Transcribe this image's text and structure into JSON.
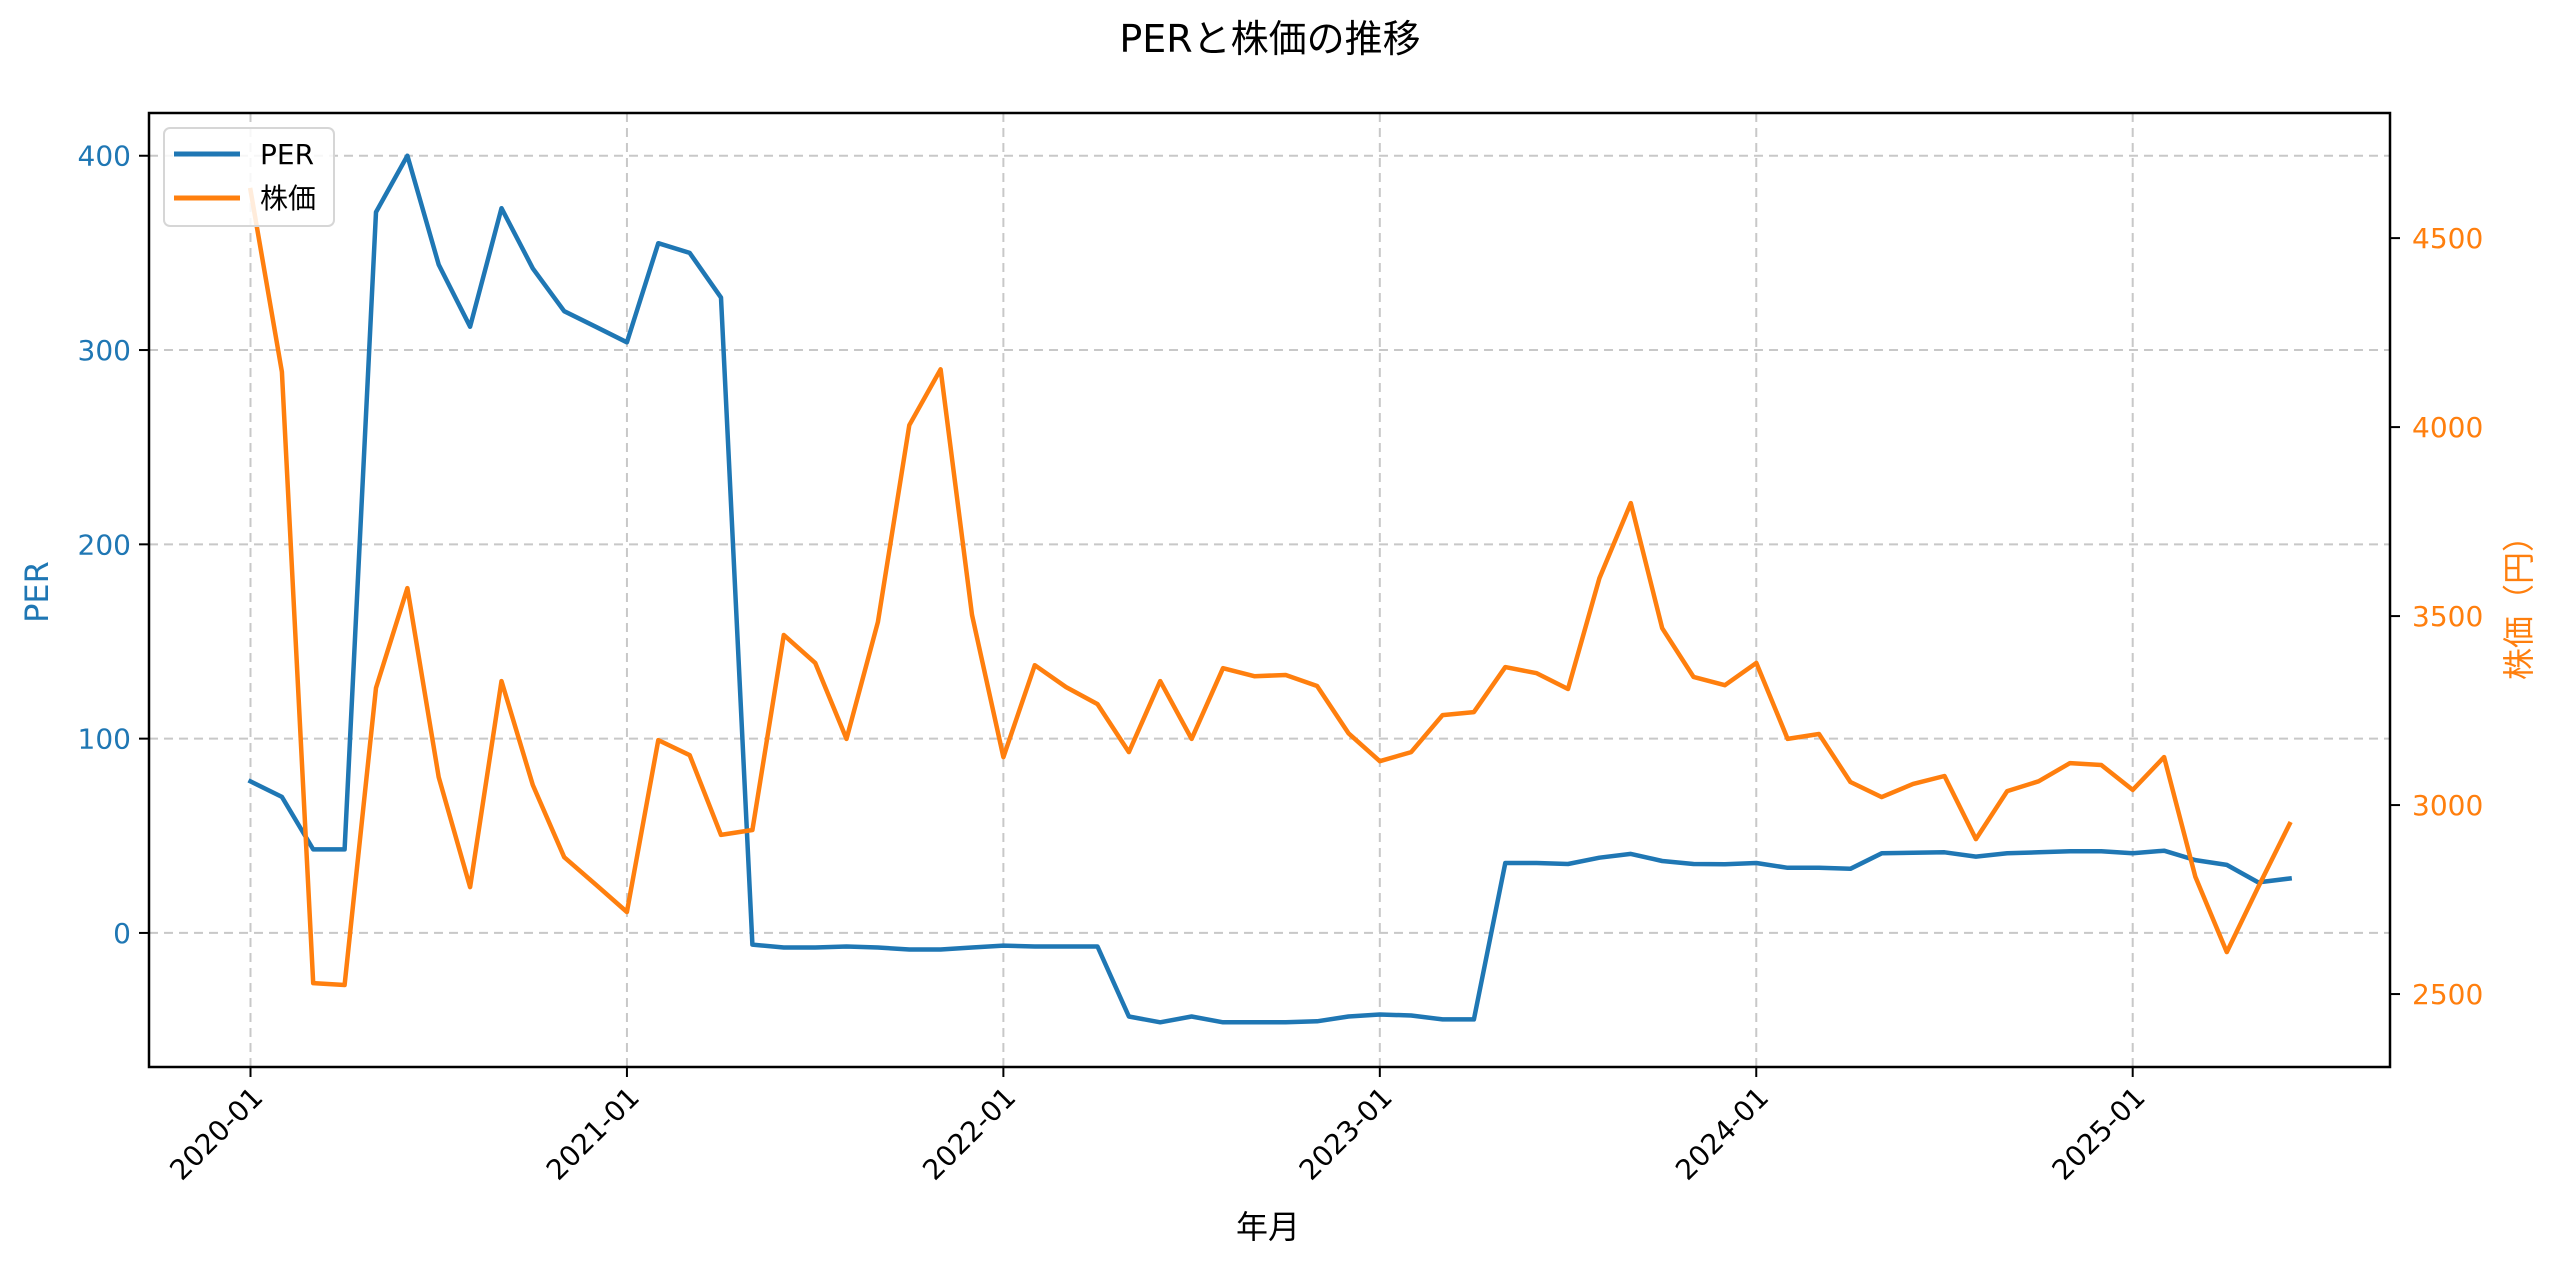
{
  "chart_data": {
    "type": "line",
    "title": "PERと株価の推移",
    "xlabel": "年月",
    "ylabel": "PER",
    "y2label": "株価（円）",
    "x_tick_labels": [
      "2020-01",
      "2021-01",
      "2022-01",
      "2023-01",
      "2024-01",
      "2025-01"
    ],
    "y_ticks": [
      0,
      100,
      200,
      300,
      400
    ],
    "y2_ticks": [
      2500,
      3000,
      3500,
      4000,
      4500
    ],
    "ylim": [
      -69,
      422
    ],
    "y2lim": [
      2307,
      4831
    ],
    "grid": true,
    "legend_position": "upper left",
    "x": [
      "2020-01",
      "2020-02",
      "2020-03",
      "2020-04",
      "2020-05",
      "2020-06",
      "2020-07",
      "2020-08",
      "2020-09",
      "2020-10",
      "2020-11",
      "2020-12",
      "2021-01",
      "2021-02",
      "2021-03",
      "2021-04",
      "2021-05",
      "2021-06",
      "2021-07",
      "2021-08",
      "2021-09",
      "2021-10",
      "2021-11",
      "2021-12",
      "2022-01",
      "2022-02",
      "2022-03",
      "2022-04",
      "2022-05",
      "2022-06",
      "2022-07",
      "2022-08",
      "2022-09",
      "2022-10",
      "2022-11",
      "2022-12",
      "2023-01",
      "2023-02",
      "2023-03",
      "2023-04",
      "2023-05",
      "2023-06",
      "2023-07",
      "2023-08",
      "2023-09",
      "2023-10",
      "2023-11",
      "2023-12",
      "2024-01",
      "2024-02",
      "2024-03",
      "2024-04",
      "2024-05",
      "2024-06",
      "2024-07",
      "2024-08",
      "2024-09",
      "2024-10",
      "2024-11",
      "2024-12",
      "2025-01",
      "2025-02",
      "2025-03",
      "2025-04",
      "2025-05",
      "2025-06"
    ],
    "series": [
      {
        "name": "PER",
        "axis": "left",
        "color": "#1f77b4",
        "values": [
          78,
          70,
          43,
          43,
          371,
          400,
          344,
          312,
          373,
          342,
          320,
          312,
          304,
          355,
          350,
          327,
          -6,
          -7.5,
          -7.5,
          -7,
          -7.5,
          -8.5,
          -8.5,
          -7.5,
          -6.5,
          -7,
          -7,
          -7,
          -43,
          -46,
          -43,
          -46,
          -46,
          -46,
          -45.5,
          -43,
          -42,
          -42.5,
          -44.5,
          -44.5,
          36,
          36,
          35.5,
          38.7,
          40.7,
          37,
          35.5,
          35.3,
          36,
          33.5,
          33.5,
          33,
          41,
          41.3,
          41.5,
          39.3,
          41,
          41.5,
          42,
          42,
          41,
          42.3,
          37.5,
          35,
          26,
          28
        ]
      },
      {
        "name": "株価",
        "axis": "right",
        "color": "#ff7f0e",
        "values": [
          4627,
          4146,
          2529,
          2524,
          3310,
          3574,
          3074,
          2783,
          3328,
          3053,
          2862,
          2790,
          2717,
          3172,
          3132,
          2921,
          2934,
          3450,
          3376,
          3175,
          3484,
          4005,
          4153,
          3503,
          3127,
          3370,
          3312,
          3267,
          3140,
          3328,
          3175,
          3362,
          3341,
          3344,
          3315,
          3190,
          3116,
          3140,
          3238,
          3246,
          3365,
          3349,
          3307,
          3600,
          3799,
          3468,
          3339,
          3317,
          3376,
          3175,
          3188,
          3061,
          3021,
          3056,
          3077,
          2910,
          3037,
          3063,
          3111,
          3106,
          3040,
          3127,
          2810,
          2611,
          2783,
          2950
        ]
      }
    ]
  },
  "legend": {
    "items": [
      {
        "label": "PER",
        "color": "#1f77b4"
      },
      {
        "label": "株価",
        "color": "#ff7f0e"
      }
    ]
  },
  "colors": {
    "per": "#1f77b4",
    "price": "#ff7f0e",
    "grid": "#c8c8c8",
    "axis": "#000000"
  }
}
